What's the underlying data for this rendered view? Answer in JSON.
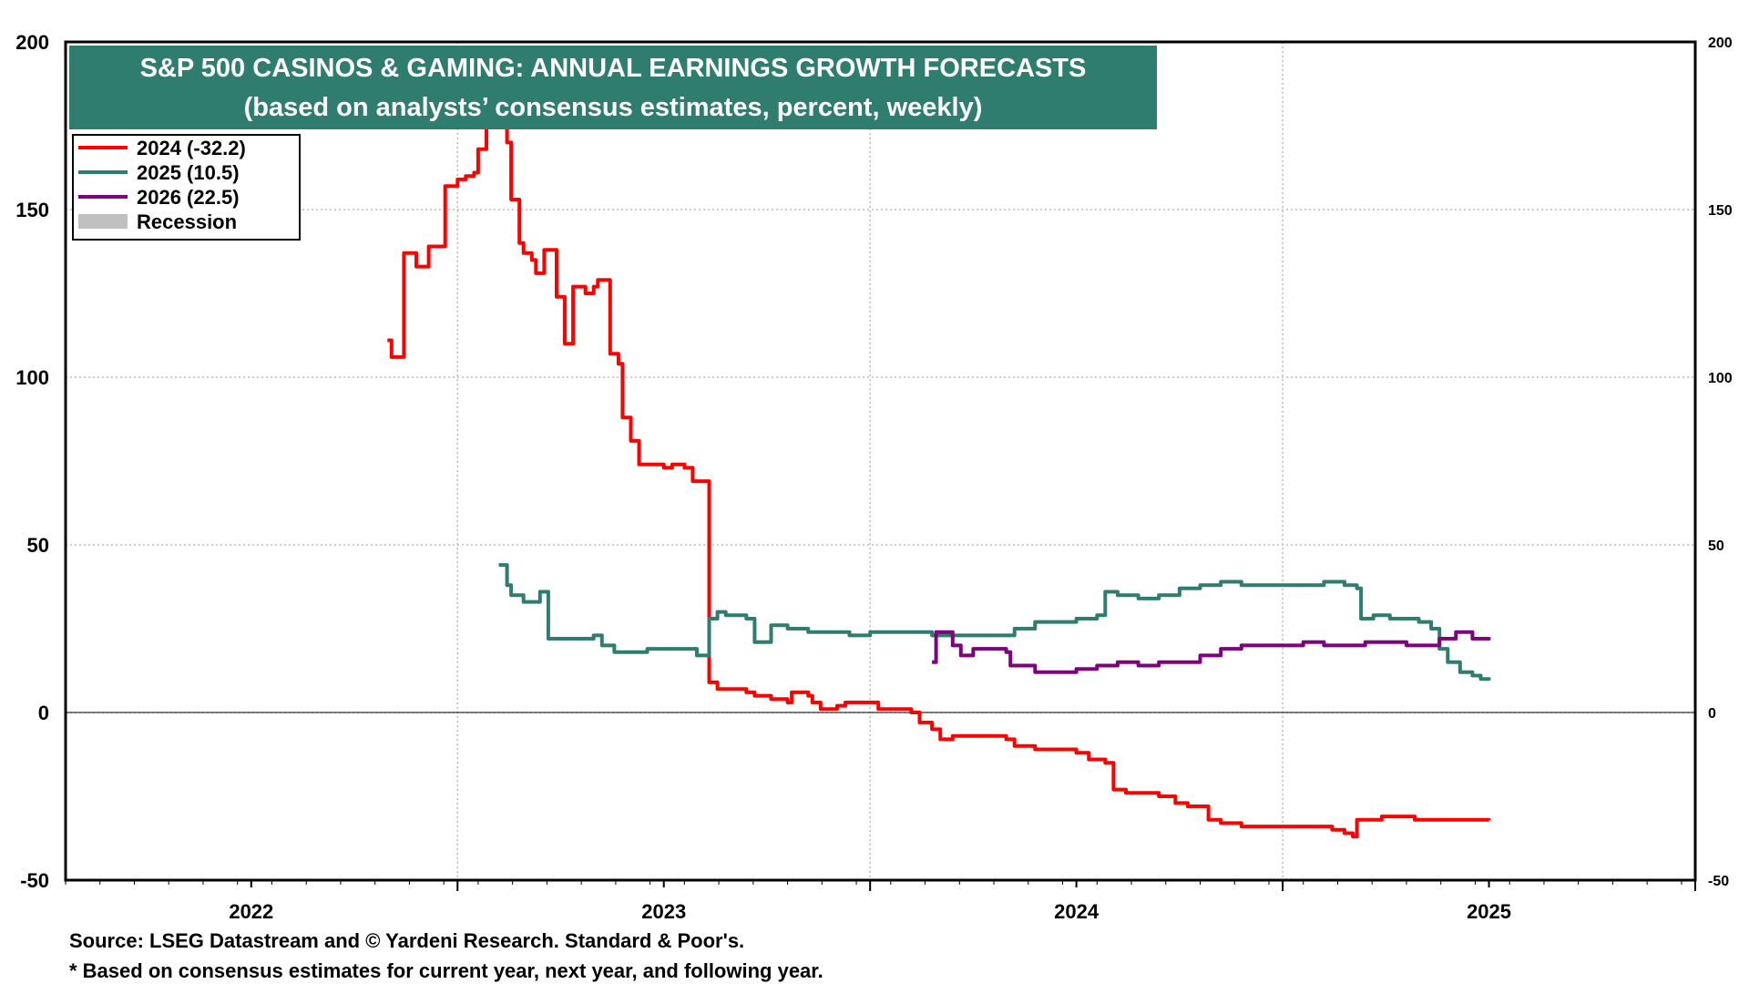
{
  "chart_data": {
    "type": "line",
    "title": "S&P 500 CASINOS & GAMING: ANNUAL EARNINGS GROWTH FORECASTS",
    "subtitle": "(based on analysts’ consensus estimates, percent, weekly)",
    "xlim": [
      2021.55,
      2025.5
    ],
    "ylim": [
      -50,
      200
    ],
    "y_ticks": [
      -50,
      0,
      50,
      100,
      150,
      200
    ],
    "x_ticks": [
      "2022",
      "2023",
      "2024",
      "2025"
    ],
    "grid": true,
    "legend_position": "top-left",
    "legend": [
      {
        "label": "2024 (-32.2)",
        "color": "#ff0000"
      },
      {
        "label": "2025 (10.5)",
        "color": "#2e7d6e"
      },
      {
        "label": "2026 (22.5)",
        "color": "#800080"
      },
      {
        "label": "Recession",
        "color": "#c0c0c0"
      }
    ],
    "series": [
      {
        "name": "2024",
        "color": "#ff0000",
        "points": [
          [
            2022.33,
            111
          ],
          [
            2022.34,
            106
          ],
          [
            2022.36,
            106
          ],
          [
            2022.37,
            137
          ],
          [
            2022.39,
            137
          ],
          [
            2022.4,
            133
          ],
          [
            2022.42,
            133
          ],
          [
            2022.43,
            139
          ],
          [
            2022.46,
            139
          ],
          [
            2022.47,
            157
          ],
          [
            2022.49,
            157
          ],
          [
            2022.5,
            159
          ],
          [
            2022.52,
            160
          ],
          [
            2022.54,
            161
          ],
          [
            2022.55,
            168
          ],
          [
            2022.57,
            175
          ],
          [
            2022.58,
            190
          ],
          [
            2022.6,
            176
          ],
          [
            2022.62,
            170
          ],
          [
            2022.63,
            153
          ],
          [
            2022.65,
            140
          ],
          [
            2022.66,
            137
          ],
          [
            2022.68,
            135
          ],
          [
            2022.69,
            131
          ],
          [
            2022.71,
            138
          ],
          [
            2022.73,
            138
          ],
          [
            2022.74,
            124
          ],
          [
            2022.76,
            110
          ],
          [
            2022.78,
            127
          ],
          [
            2022.8,
            127
          ],
          [
            2022.81,
            125
          ],
          [
            2022.83,
            127
          ],
          [
            2022.84,
            129
          ],
          [
            2022.86,
            129
          ],
          [
            2022.87,
            107
          ],
          [
            2022.89,
            104
          ],
          [
            2022.9,
            88
          ],
          [
            2022.92,
            81
          ],
          [
            2022.94,
            74
          ],
          [
            2022.96,
            74
          ],
          [
            2023.0,
            73
          ],
          [
            2023.02,
            74
          ],
          [
            2023.05,
            73
          ],
          [
            2023.07,
            69
          ],
          [
            2023.1,
            69
          ],
          [
            2023.11,
            9
          ],
          [
            2023.13,
            7
          ],
          [
            2023.2,
            6
          ],
          [
            2023.22,
            5
          ],
          [
            2023.26,
            4
          ],
          [
            2023.3,
            3
          ],
          [
            2023.31,
            6
          ],
          [
            2023.35,
            5
          ],
          [
            2023.36,
            3
          ],
          [
            2023.38,
            1
          ],
          [
            2023.42,
            2
          ],
          [
            2023.44,
            3
          ],
          [
            2023.5,
            3
          ],
          [
            2023.52,
            1
          ],
          [
            2023.6,
            0
          ],
          [
            2023.62,
            -3
          ],
          [
            2023.65,
            -5
          ],
          [
            2023.67,
            -8
          ],
          [
            2023.7,
            -7
          ],
          [
            2023.75,
            -7
          ],
          [
            2023.8,
            -7
          ],
          [
            2023.83,
            -8
          ],
          [
            2023.85,
            -10
          ],
          [
            2023.88,
            -10
          ],
          [
            2023.9,
            -11
          ],
          [
            2023.97,
            -11
          ],
          [
            2024.0,
            -12
          ],
          [
            2024.03,
            -14
          ],
          [
            2024.07,
            -15
          ],
          [
            2024.09,
            -23
          ],
          [
            2024.12,
            -24
          ],
          [
            2024.17,
            -24
          ],
          [
            2024.2,
            -25
          ],
          [
            2024.24,
            -27
          ],
          [
            2024.27,
            -28
          ],
          [
            2024.3,
            -28
          ],
          [
            2024.32,
            -32
          ],
          [
            2024.35,
            -33
          ],
          [
            2024.4,
            -34
          ],
          [
            2024.5,
            -34
          ],
          [
            2024.6,
            -34
          ],
          [
            2024.62,
            -35
          ],
          [
            2024.65,
            -36
          ],
          [
            2024.67,
            -37
          ],
          [
            2024.68,
            -32
          ],
          [
            2024.72,
            -32
          ],
          [
            2024.74,
            -31
          ],
          [
            2024.8,
            -31
          ],
          [
            2024.82,
            -32
          ],
          [
            2024.9,
            -32
          ],
          [
            2025.0,
            -32.2
          ]
        ]
      },
      {
        "name": "2025",
        "color": "#2e7d6e",
        "points": [
          [
            2022.6,
            44
          ],
          [
            2022.62,
            38
          ],
          [
            2022.63,
            35
          ],
          [
            2022.66,
            33
          ],
          [
            2022.7,
            36
          ],
          [
            2022.72,
            22
          ],
          [
            2022.8,
            22
          ],
          [
            2022.83,
            23
          ],
          [
            2022.85,
            20
          ],
          [
            2022.88,
            18
          ],
          [
            2022.92,
            18
          ],
          [
            2022.96,
            19
          ],
          [
            2023.0,
            19
          ],
          [
            2023.05,
            19
          ],
          [
            2023.08,
            17
          ],
          [
            2023.1,
            17
          ],
          [
            2023.11,
            28
          ],
          [
            2023.13,
            30
          ],
          [
            2023.15,
            29
          ],
          [
            2023.2,
            28
          ],
          [
            2023.22,
            21
          ],
          [
            2023.25,
            21
          ],
          [
            2023.26,
            26
          ],
          [
            2023.3,
            25
          ],
          [
            2023.35,
            24
          ],
          [
            2023.45,
            23
          ],
          [
            2023.5,
            24
          ],
          [
            2023.55,
            24
          ],
          [
            2023.65,
            23
          ],
          [
            2023.7,
            23
          ],
          [
            2023.75,
            23
          ],
          [
            2023.8,
            23
          ],
          [
            2023.85,
            25
          ],
          [
            2023.9,
            27
          ],
          [
            2023.95,
            27
          ],
          [
            2024.0,
            28
          ],
          [
            2024.05,
            29
          ],
          [
            2024.07,
            36
          ],
          [
            2024.1,
            35
          ],
          [
            2024.15,
            34
          ],
          [
            2024.2,
            35
          ],
          [
            2024.25,
            37
          ],
          [
            2024.3,
            38
          ],
          [
            2024.35,
            39
          ],
          [
            2024.4,
            38
          ],
          [
            2024.45,
            38
          ],
          [
            2024.5,
            38
          ],
          [
            2024.55,
            38
          ],
          [
            2024.6,
            39
          ],
          [
            2024.65,
            38
          ],
          [
            2024.68,
            37
          ],
          [
            2024.69,
            28
          ],
          [
            2024.72,
            29
          ],
          [
            2024.76,
            28
          ],
          [
            2024.8,
            28
          ],
          [
            2024.83,
            27
          ],
          [
            2024.86,
            25
          ],
          [
            2024.88,
            19
          ],
          [
            2024.9,
            15
          ],
          [
            2024.93,
            12
          ],
          [
            2024.96,
            11
          ],
          [
            2024.98,
            10
          ],
          [
            2025.0,
            10.5
          ]
        ]
      },
      {
        "name": "2026",
        "color": "#800080",
        "points": [
          [
            2023.65,
            15
          ],
          [
            2023.66,
            24
          ],
          [
            2023.68,
            24
          ],
          [
            2023.7,
            20
          ],
          [
            2023.72,
            17
          ],
          [
            2023.75,
            19
          ],
          [
            2023.8,
            19
          ],
          [
            2023.83,
            18
          ],
          [
            2023.84,
            14
          ],
          [
            2023.88,
            14
          ],
          [
            2023.9,
            12
          ],
          [
            2023.95,
            12
          ],
          [
            2024.0,
            13
          ],
          [
            2024.05,
            14
          ],
          [
            2024.1,
            15
          ],
          [
            2024.15,
            14
          ],
          [
            2024.2,
            15
          ],
          [
            2024.25,
            15
          ],
          [
            2024.3,
            17
          ],
          [
            2024.35,
            19
          ],
          [
            2024.4,
            20
          ],
          [
            2024.5,
            20
          ],
          [
            2024.55,
            21
          ],
          [
            2024.6,
            20
          ],
          [
            2024.65,
            20
          ],
          [
            2024.7,
            21
          ],
          [
            2024.75,
            21
          ],
          [
            2024.8,
            20
          ],
          [
            2024.84,
            20
          ],
          [
            2024.88,
            22
          ],
          [
            2024.92,
            24
          ],
          [
            2024.96,
            22
          ],
          [
            2025.0,
            22.5
          ]
        ]
      }
    ]
  },
  "footer": {
    "source": "Source: LSEG Datastream and © Yardeni Research. Standard & Poor's.",
    "note": "* Based on consensus estimates for current year, next year, and following year."
  }
}
